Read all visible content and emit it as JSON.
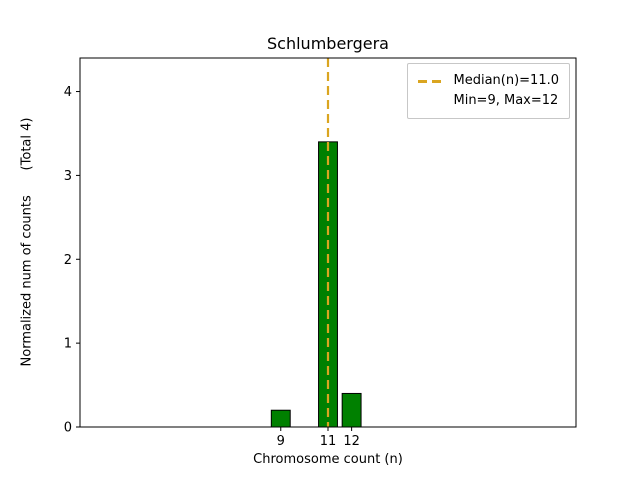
{
  "chart_data": {
    "type": "bar",
    "title": "Schlumbergera",
    "xlabel": "Chromosome count (n)",
    "ylabel": "Normalized num of counts      (Total 4)",
    "x": [
      9,
      11,
      12
    ],
    "values": [
      0.2,
      3.4,
      0.4
    ],
    "bar_width": 0.8,
    "bar_color": "#008000",
    "bar_edge_color": "#000000",
    "xlim": [
      0.5,
      21.5
    ],
    "ylim": [
      0,
      4.4
    ],
    "xticks": [
      9,
      11,
      12
    ],
    "yticks": [
      0,
      1,
      2,
      3,
      4
    ],
    "grid": false,
    "median_line": {
      "x": 11,
      "color": "#daa520",
      "style": "dashed",
      "label": "Median(n)=11.0"
    },
    "legend": {
      "position": "upper right",
      "entries": [
        {
          "label": "Median(n)=11.0",
          "marker": "dashed-line",
          "color": "#daa520"
        },
        {
          "label": "Min=9, Max=12",
          "marker": "none"
        }
      ]
    }
  }
}
